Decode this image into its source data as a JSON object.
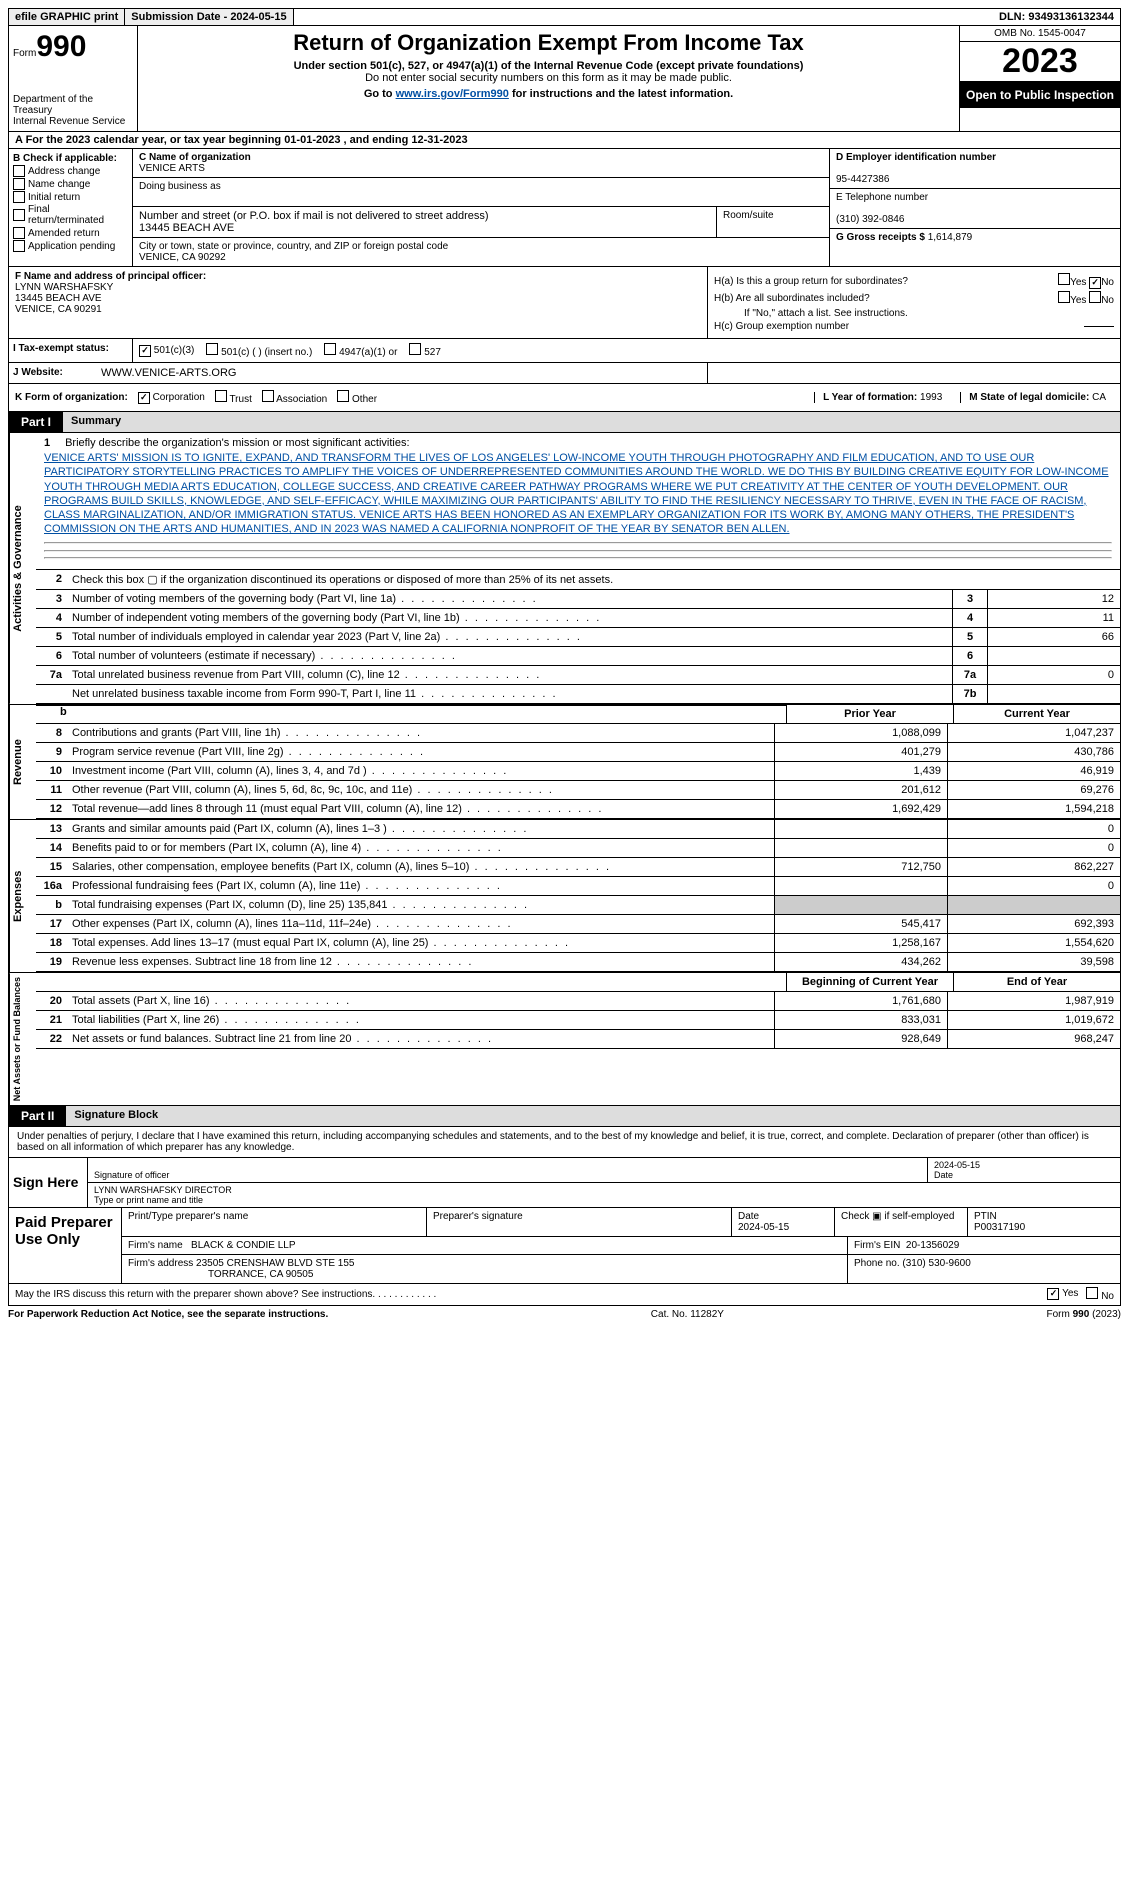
{
  "top": {
    "efile": "efile GRAPHIC print",
    "sub_date_lbl": "Submission Date - 2024-05-15",
    "dln": "DLN: 93493136132344"
  },
  "header": {
    "form_prefix": "Form",
    "form_number": "990",
    "dept1": "Department of the Treasury",
    "dept2": "Internal Revenue Service",
    "title": "Return of Organization Exempt From Income Tax",
    "sub": "Under section 501(c), 527, or 4947(a)(1) of the Internal Revenue Code (except private foundations)",
    "sub2": "Do not enter social security numbers on this form as it may be made public.",
    "goto_pre": "Go to ",
    "goto_link": "www.irs.gov/Form990",
    "goto_post": " for instructions and the latest information.",
    "omb": "OMB No. 1545-0047",
    "year": "2023",
    "open": "Open to Public Inspection"
  },
  "rowA": "A For the 2023 calendar year, or tax year beginning 01-01-2023   , and ending 12-31-2023",
  "boxB": {
    "title": "B Check if applicable:",
    "items": [
      "Address change",
      "Name change",
      "Initial return",
      "Final return/terminated",
      "Amended return",
      "Application pending"
    ]
  },
  "boxC": {
    "name_lbl": "C Name of organization",
    "name": "VENICE ARTS",
    "dba_lbl": "Doing business as",
    "addr_lbl": "Number and street (or P.O. box if mail is not delivered to street address)",
    "addr": "13445 BEACH AVE",
    "room_lbl": "Room/suite",
    "city_lbl": "City or town, state or province, country, and ZIP or foreign postal code",
    "city": "VENICE, CA  90292"
  },
  "boxD": {
    "lbl": "D Employer identification number",
    "val": "95-4427386"
  },
  "boxE": {
    "lbl": "E Telephone number",
    "val": "(310) 392-0846"
  },
  "boxG": {
    "lbl": "G Gross receipts $",
    "val": "1,614,879"
  },
  "boxF": {
    "lbl": "F  Name and address of principal officer:",
    "name": "LYNN WARSHAFSKY",
    "addr1": "13445 BEACH AVE",
    "addr2": "VENICE, CA  90291"
  },
  "boxH": {
    "ha_lbl": "H(a)  Is this a group return for subordinates?",
    "yes": "Yes",
    "no": "No",
    "hb_lbl": "H(b)  Are all subordinates included?",
    "hb_note": "If \"No,\" attach a list. See instructions.",
    "hc_lbl": "H(c)  Group exemption number"
  },
  "rowI": {
    "lbl": "I  Tax-exempt status:",
    "opts": [
      "501(c)(3)",
      "501(c) (  ) (insert no.)",
      "4947(a)(1) or",
      "527"
    ]
  },
  "rowJ": {
    "lbl": "J  Website:",
    "val": "WWW.VENICE-ARTS.ORG"
  },
  "rowK": {
    "lbl": "K Form of organization:",
    "opts": [
      "Corporation",
      "Trust",
      "Association",
      "Other"
    ],
    "L_lbl": "L Year of formation:",
    "L_val": "1993",
    "M_lbl": "M State of legal domicile:",
    "M_val": "CA"
  },
  "part1": {
    "num": "Part I",
    "title": "Summary"
  },
  "mission": {
    "num": "1",
    "lbl": "Briefly describe the organization's mission or most significant activities:",
    "text": "VENICE ARTS' MISSION IS TO IGNITE, EXPAND, AND TRANSFORM THE LIVES OF LOS ANGELES' LOW-INCOME YOUTH THROUGH PHOTOGRAPHY AND FILM EDUCATION, AND TO USE OUR PARTICIPATORY STORYTELLING PRACTICES TO AMPLIFY THE VOICES OF UNDERREPRESENTED COMMUNITIES AROUND THE WORLD. WE DO THIS BY BUILDING CREATIVE EQUITY FOR LOW-INCOME YOUTH THROUGH MEDIA ARTS EDUCATION, COLLEGE SUCCESS, AND CREATIVE CAREER PATHWAY PROGRAMS WHERE WE PUT CREATIVITY AT THE CENTER OF YOUTH DEVELOPMENT. OUR PROGRAMS BUILD SKILLS, KNOWLEDGE, AND SELF-EFFICACY, WHILE MAXIMIZING OUR PARTICIPANTS' ABILITY TO FIND THE RESILIENCY NECESSARY TO THRIVE, EVEN IN THE FACE OF RACISM, CLASS MARGINALIZATION, AND/OR IMMIGRATION STATUS. VENICE ARTS HAS BEEN HONORED AS AN EXEMPLARY ORGANIZATION FOR ITS WORK BY, AMONG MANY OTHERS, THE PRESIDENT'S COMMISSION ON THE ARTS AND HUMANITIES, AND IN 2023 WAS NAMED A CALIFORNIA NONPROFIT OF THE YEAR BY SENATOR BEN ALLEN."
  },
  "gov_rows": [
    {
      "n": "2",
      "desc": "Check this box ▢ if the organization discontinued its operations or disposed of more than 25% of its net assets.",
      "box": "",
      "val": ""
    },
    {
      "n": "3",
      "desc": "Number of voting members of the governing body (Part VI, line 1a)",
      "box": "3",
      "val": "12"
    },
    {
      "n": "4",
      "desc": "Number of independent voting members of the governing body (Part VI, line 1b)",
      "box": "4",
      "val": "11"
    },
    {
      "n": "5",
      "desc": "Total number of individuals employed in calendar year 2023 (Part V, line 2a)",
      "box": "5",
      "val": "66"
    },
    {
      "n": "6",
      "desc": "Total number of volunteers (estimate if necessary)",
      "box": "6",
      "val": ""
    },
    {
      "n": "7a",
      "desc": "Total unrelated business revenue from Part VIII, column (C), line 12",
      "box": "7a",
      "val": "0"
    },
    {
      "n": "",
      "desc": "Net unrelated business taxable income from Form 990-T, Part I, line 11",
      "box": "7b",
      "val": ""
    }
  ],
  "col_hdrs": {
    "prior": "Prior Year",
    "curr": "Current Year"
  },
  "rev_rows": [
    {
      "n": "8",
      "desc": "Contributions and grants (Part VIII, line 1h)",
      "p": "1,088,099",
      "c": "1,047,237"
    },
    {
      "n": "9",
      "desc": "Program service revenue (Part VIII, line 2g)",
      "p": "401,279",
      "c": "430,786"
    },
    {
      "n": "10",
      "desc": "Investment income (Part VIII, column (A), lines 3, 4, and 7d )",
      "p": "1,439",
      "c": "46,919"
    },
    {
      "n": "11",
      "desc": "Other revenue (Part VIII, column (A), lines 5, 6d, 8c, 9c, 10c, and 11e)",
      "p": "201,612",
      "c": "69,276"
    },
    {
      "n": "12",
      "desc": "Total revenue—add lines 8 through 11 (must equal Part VIII, column (A), line 12)",
      "p": "1,692,429",
      "c": "1,594,218"
    }
  ],
  "exp_rows": [
    {
      "n": "13",
      "desc": "Grants and similar amounts paid (Part IX, column (A), lines 1–3 )",
      "p": "",
      "c": "0"
    },
    {
      "n": "14",
      "desc": "Benefits paid to or for members (Part IX, column (A), line 4)",
      "p": "",
      "c": "0"
    },
    {
      "n": "15",
      "desc": "Salaries, other compensation, employee benefits (Part IX, column (A), lines 5–10)",
      "p": "712,750",
      "c": "862,227"
    },
    {
      "n": "16a",
      "desc": "Professional fundraising fees (Part IX, column (A), line 11e)",
      "p": "",
      "c": "0"
    },
    {
      "n": "b",
      "desc": "Total fundraising expenses (Part IX, column (D), line 25) 135,841",
      "p": "SHADE",
      "c": "SHADE"
    },
    {
      "n": "17",
      "desc": "Other expenses (Part IX, column (A), lines 11a–11d, 11f–24e)",
      "p": "545,417",
      "c": "692,393"
    },
    {
      "n": "18",
      "desc": "Total expenses. Add lines 13–17 (must equal Part IX, column (A), line 25)",
      "p": "1,258,167",
      "c": "1,554,620"
    },
    {
      "n": "19",
      "desc": "Revenue less expenses. Subtract line 18 from line 12",
      "p": "434,262",
      "c": "39,598"
    }
  ],
  "net_hdrs": {
    "b": "Beginning of Current Year",
    "e": "End of Year"
  },
  "net_rows": [
    {
      "n": "20",
      "desc": "Total assets (Part X, line 16)",
      "p": "1,761,680",
      "c": "1,987,919"
    },
    {
      "n": "21",
      "desc": "Total liabilities (Part X, line 26)",
      "p": "833,031",
      "c": "1,019,672"
    },
    {
      "n": "22",
      "desc": "Net assets or fund balances. Subtract line 21 from line 20",
      "p": "928,649",
      "c": "968,247"
    }
  ],
  "vlabels": {
    "gov": "Activities & Governance",
    "rev": "Revenue",
    "exp": "Expenses",
    "net": "Net Assets or Fund Balances"
  },
  "part2": {
    "num": "Part II",
    "title": "Signature Block"
  },
  "sig": {
    "decl": "Under penalties of perjury, I declare that I have examined this return, including accompanying schedules and statements, and to the best of my knowledge and belief, it is true, correct, and complete. Declaration of preparer (other than officer) is based on all information of which preparer has any knowledge.",
    "sign_here": "Sign Here",
    "sig_officer_lbl": "Signature of officer",
    "sig_date": "2024-05-15",
    "date_lbl": "Date",
    "name_title": "LYNN WARSHAFSKY DIRECTOR",
    "name_title_lbl": "Type or print name and title"
  },
  "prep": {
    "lbl": "Paid Preparer Use Only",
    "name_lbl": "Print/Type preparer's name",
    "psig_lbl": "Preparer's signature",
    "pdate_lbl": "Date",
    "pdate": "2024-05-15",
    "check_lbl": "Check ▣ if self-employed",
    "ptin_lbl": "PTIN",
    "ptin": "P00317190",
    "firm_name_lbl": "Firm's name",
    "firm_name": "BLACK & CONDIE LLP",
    "firm_ein_lbl": "Firm's EIN",
    "firm_ein": "20-1356029",
    "firm_addr_lbl": "Firm's address",
    "firm_addr": "23505 CRENSHAW BLVD STE 155",
    "firm_city": "TORRANCE, CA  90505",
    "phone_lbl": "Phone no.",
    "phone": "(310) 530-9600"
  },
  "discuss": {
    "q": "May the IRS discuss this return with the preparer shown above? See instructions.",
    "yes": "Yes",
    "no": "No"
  },
  "footer": {
    "pra": "For Paperwork Reduction Act Notice, see the separate instructions.",
    "cat": "Cat. No. 11282Y",
    "form": "Form 990 (2023)"
  }
}
